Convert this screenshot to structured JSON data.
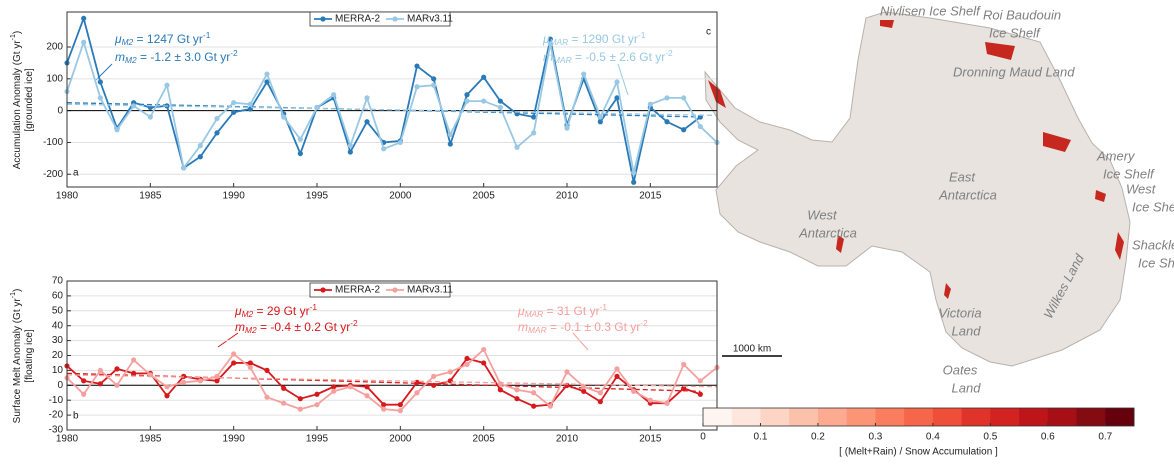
{
  "chart_data": [
    {
      "type": "line",
      "panel_label": "a",
      "ylabel": [
        [
          [
            "Accumulation Anomaly (Gt yr",
            ""
          ],
          [
            "-1",
            "sup"
          ],
          [
            ")",
            ""
          ]
        ],
        [
          [
            "[grounded ice]",
            ""
          ]
        ]
      ],
      "xlim": [
        1980,
        2019
      ],
      "xticks": [
        1980,
        1985,
        1990,
        1995,
        2000,
        2005,
        2010,
        2015
      ],
      "ylim": [
        -240,
        310
      ],
      "yticks": [
        -200,
        -100,
        0,
        100,
        200
      ],
      "grid": true,
      "reference_line": 0,
      "x": [
        1980,
        1981,
        1982,
        1983,
        1984,
        1985,
        1986,
        1987,
        1988,
        1989,
        1990,
        1991,
        1992,
        1993,
        1994,
        1995,
        1996,
        1997,
        1998,
        1999,
        2000,
        2001,
        2002,
        2003,
        2004,
        2005,
        2006,
        2007,
        2008,
        2009,
        2010,
        2011,
        2012,
        2013,
        2014,
        2015,
        2016,
        2017,
        2018,
        2019
      ],
      "series": [
        {
          "name": "MERRA-2",
          "color": "#2a7ab8",
          "values": [
            150,
            290,
            90,
            -55,
            25,
            10,
            15,
            -180,
            -145,
            -70,
            -5,
            5,
            90,
            -10,
            -135,
            10,
            40,
            -130,
            -35,
            -100,
            -95,
            140,
            100,
            -105,
            50,
            105,
            30,
            -10,
            -20,
            225,
            -45,
            100,
            -35,
            40,
            -225,
            10,
            -35,
            -60,
            -20,
            null
          ],
          "trend": {
            "x": [
              1980,
              2018
            ],
            "y": [
              25,
              -20
            ]
          }
        },
        {
          "name": "MARv3.11",
          "color": "#98c8e3",
          "values": [
            60,
            215,
            40,
            -60,
            15,
            -20,
            80,
            -180,
            -110,
            -25,
            25,
            20,
            115,
            -20,
            -90,
            10,
            50,
            -110,
            40,
            -120,
            -100,
            75,
            80,
            -75,
            30,
            30,
            10,
            -115,
            -70,
            210,
            -55,
            115,
            -20,
            90,
            -195,
            20,
            40,
            40,
            -50,
            -100
          ],
          "trend": {
            "x": [
              1980,
              2019
            ],
            "y": [
              20,
              -15
            ]
          }
        }
      ],
      "annotations": [
        {
          "color": "#2a7ab8",
          "parts": [
            [
              "μ",
              "i"
            ],
            [
              "M2",
              "sub"
            ],
            [
              " = 1247 Gt yr",
              ""
            ],
            [
              "-1",
              "sup"
            ]
          ]
        },
        {
          "color": "#2a7ab8",
          "parts": [
            [
              "m",
              "i"
            ],
            [
              "M2",
              "sub"
            ],
            [
              " = -1.2 ± 3.0 Gt yr",
              ""
            ],
            [
              "-2",
              "sup"
            ]
          ]
        },
        {
          "color": "#98c8e3",
          "parts": [
            [
              "μ",
              "i"
            ],
            [
              "MAR",
              "sub"
            ],
            [
              " = 1290 Gt yr",
              ""
            ],
            [
              "-1",
              "sup"
            ]
          ]
        },
        {
          "color": "#98c8e3",
          "parts": [
            [
              "m",
              "i"
            ],
            [
              "MAR",
              "sub"
            ],
            [
              " = -0.5 ± 2.6 Gt yr",
              ""
            ],
            [
              "-2",
              "sup"
            ]
          ]
        }
      ]
    },
    {
      "type": "line",
      "panel_label": "b",
      "ylabel": [
        [
          [
            "Surface Melt Anomaly (Gt yr",
            ""
          ],
          [
            "-1",
            "sup"
          ],
          [
            ")",
            ""
          ]
        ],
        [
          [
            "[floating ice]",
            ""
          ]
        ]
      ],
      "xlim": [
        1980,
        2019
      ],
      "xticks": [
        1980,
        1985,
        1990,
        1995,
        2000,
        2005,
        2010,
        2015
      ],
      "ylim": [
        -30,
        70
      ],
      "yticks": [
        -30,
        -20,
        -10,
        0,
        10,
        20,
        30,
        40,
        50,
        60,
        70
      ],
      "grid": true,
      "reference_line": 0,
      "x": [
        1980,
        1981,
        1982,
        1983,
        1984,
        1985,
        1986,
        1987,
        1988,
        1989,
        1990,
        1991,
        1992,
        1993,
        1994,
        1995,
        1996,
        1997,
        1998,
        1999,
        2000,
        2001,
        2002,
        2003,
        2004,
        2005,
        2006,
        2007,
        2008,
        2009,
        2010,
        2011,
        2012,
        2013,
        2014,
        2015,
        2016,
        2017,
        2018,
        2019
      ],
      "series": [
        {
          "name": "MERRA-2",
          "color": "#d7191c",
          "values": [
            13,
            3,
            1,
            11,
            8,
            8,
            -7,
            6,
            4,
            3,
            15,
            15,
            10,
            -2,
            -9,
            -6,
            -1,
            0,
            -1,
            -13,
            -13,
            2,
            0,
            3,
            18,
            15,
            -3,
            -9,
            -14,
            -13,
            0,
            -4,
            -11,
            6,
            -3,
            -12,
            -12,
            -2,
            -6,
            null
          ],
          "trend": {
            "x": [
              1980,
              2018
            ],
            "y": [
              8,
              -4
            ]
          }
        },
        {
          "name": "MARv3.11",
          "color": "#f4a09e",
          "values": [
            5,
            -6,
            10,
            0,
            17,
            7,
            -1,
            2,
            3,
            6,
            21,
            12,
            -8,
            -12,
            -16,
            -13,
            -4,
            -1,
            -7,
            -16,
            -17,
            -5,
            6,
            9,
            14,
            24,
            1,
            -3,
            -5,
            -14,
            9,
            -1,
            -5,
            11,
            -4,
            -10,
            -12,
            14,
            3,
            12
          ],
          "trend": {
            "x": [
              1980,
              2019
            ],
            "y": [
              7,
              -1
            ]
          }
        }
      ],
      "annotations": [
        {
          "color": "#d7191c",
          "parts": [
            [
              "μ",
              "i"
            ],
            [
              "M2",
              "sub"
            ],
            [
              " = 29 Gt yr",
              ""
            ],
            [
              "-1",
              "sup"
            ]
          ]
        },
        {
          "color": "#d7191c",
          "parts": [
            [
              "m",
              "i"
            ],
            [
              "M2",
              "sub"
            ],
            [
              " = -0.4 ± 0.2 Gt yr",
              ""
            ],
            [
              "-2",
              "sup"
            ]
          ]
        },
        {
          "color": "#f4a09e",
          "parts": [
            [
              "μ",
              "i"
            ],
            [
              "MAR",
              "sub"
            ],
            [
              " = 31 Gt yr",
              ""
            ],
            [
              "-1",
              "sup"
            ]
          ]
        },
        {
          "color": "#f4a09e",
          "parts": [
            [
              "m",
              "i"
            ],
            [
              "MAR",
              "sub"
            ],
            [
              " = -0.1 ± 0.3 Gt yr",
              ""
            ],
            [
              "-2",
              "sup"
            ]
          ]
        }
      ]
    }
  ],
  "map": {
    "panel_label": "c",
    "scale_bar": "1000 km",
    "labels": [
      {
        "lines": [
          "Nivlisen Ice Shelf"
        ]
      },
      {
        "lines": [
          "Roi Baudouin",
          "Ice Shelf"
        ]
      },
      {
        "lines": [
          "Dronning Maud Land"
        ]
      },
      {
        "lines": [
          "Amery",
          "Ice Shelf"
        ]
      },
      {
        "lines": [
          "West",
          "Ice Shelf"
        ]
      },
      {
        "lines": [
          "Shackleton",
          "Ice Shelf"
        ]
      },
      {
        "lines": [
          "East",
          "Antarctica"
        ]
      },
      {
        "lines": [
          "West",
          "Antarctica"
        ]
      },
      {
        "lines": [
          "Victoria",
          "Land"
        ]
      },
      {
        "lines": [
          "Oates",
          "Land"
        ]
      },
      {
        "lines": [
          "Wilkes Land"
        ]
      }
    ],
    "colorbar": {
      "lim": [
        0,
        0.75
      ],
      "ticks": [
        0,
        0.1,
        0.2,
        0.3,
        0.4,
        0.5,
        0.6,
        0.7
      ],
      "label": "[ (Melt+Rain) / Snow Accumulation ]",
      "colors": [
        "#fff5f0",
        "#fee6dc",
        "#fdd5c4",
        "#fcc1ab",
        "#fcab91",
        "#fc9576",
        "#fb7d5f",
        "#f6664b",
        "#ef4e39",
        "#e0342b",
        "#d22321",
        "#bd151a",
        "#a50f15",
        "#850b12",
        "#67000d"
      ]
    }
  }
}
